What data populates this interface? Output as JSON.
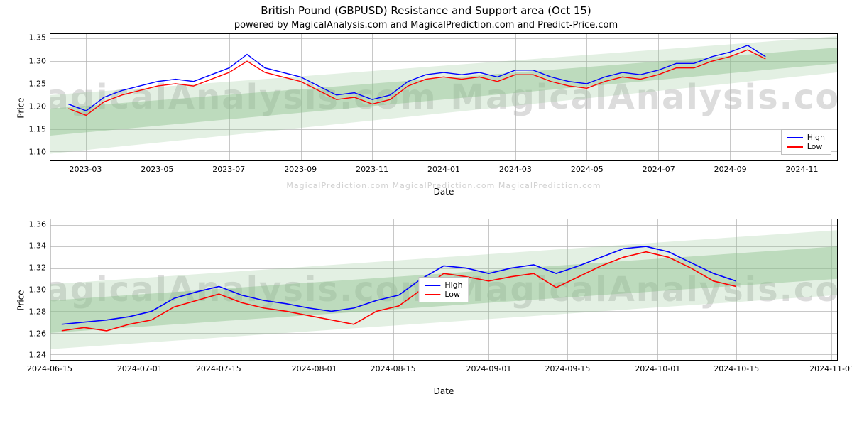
{
  "title": "British Pound (GBPUSD) Resistance and Support area (Oct 15)",
  "subtitle": "powered by MagicalAnalysis.com and MagicalPrediction.com and Predict-Price.com",
  "top_chart": {
    "type": "line",
    "ylabel": "Price",
    "xlabel": "Date",
    "ylim": [
      1.08,
      1.36
    ],
    "yticks": [
      1.1,
      1.15,
      1.2,
      1.25,
      1.3,
      1.35
    ],
    "xlim": [
      0,
      22
    ],
    "xticks": [
      {
        "pos": 1,
        "label": "2023-03"
      },
      {
        "pos": 3,
        "label": "2023-05"
      },
      {
        "pos": 5,
        "label": "2023-07"
      },
      {
        "pos": 7,
        "label": "2023-09"
      },
      {
        "pos": 9,
        "label": "2023-11"
      },
      {
        "pos": 11,
        "label": "2024-01"
      },
      {
        "pos": 13,
        "label": "2024-03"
      },
      {
        "pos": 15,
        "label": "2024-05"
      },
      {
        "pos": 17,
        "label": "2024-07"
      },
      {
        "pos": 19,
        "label": "2024-09"
      },
      {
        "pos": 21,
        "label": "2024-11"
      }
    ],
    "watermark_text": "MagicalAnalysis.com    MagicalAnalysis.com",
    "footer_watermark": "MagicalPrediction.com   MagicalPrediction.com   MagicalPrediction.com",
    "line_high_color": "#0000ff",
    "line_low_color": "#ff0000",
    "band_color": "#8fc28f",
    "band_opacity_outer": 0.25,
    "band_opacity_inner": 0.45,
    "grid_color": "#b0b0b0",
    "background_color": "#ffffff",
    "line_width": 1.4,
    "legend": {
      "items": [
        {
          "label": "High",
          "color": "#0000ff"
        },
        {
          "label": "Low",
          "color": "#ff0000"
        }
      ]
    },
    "bands": {
      "outer": {
        "start_low": 1.095,
        "start_high": 1.225,
        "end_low": 1.275,
        "end_high": 1.355
      },
      "inner": {
        "start_low": 1.135,
        "start_high": 1.195,
        "end_low": 1.295,
        "end_high": 1.33
      }
    },
    "series_x": [
      0.5,
      1,
      1.5,
      2,
      2.5,
      3,
      3.5,
      4,
      4.5,
      5,
      5.5,
      6,
      6.5,
      7,
      7.5,
      8,
      8.5,
      9,
      9.5,
      10,
      10.5,
      11,
      11.5,
      12,
      12.5,
      13,
      13.5,
      14,
      14.5,
      15,
      15.5,
      16,
      16.5,
      17,
      17.5,
      18,
      18.5,
      19,
      19.5,
      20
    ],
    "series_high": [
      1.205,
      1.19,
      1.22,
      1.235,
      1.245,
      1.255,
      1.26,
      1.255,
      1.27,
      1.285,
      1.315,
      1.285,
      1.275,
      1.265,
      1.245,
      1.225,
      1.23,
      1.215,
      1.225,
      1.255,
      1.27,
      1.275,
      1.27,
      1.275,
      1.265,
      1.28,
      1.28,
      1.265,
      1.255,
      1.25,
      1.265,
      1.275,
      1.27,
      1.28,
      1.295,
      1.295,
      1.31,
      1.32,
      1.335,
      1.31
    ],
    "series_low": [
      1.195,
      1.18,
      1.21,
      1.225,
      1.235,
      1.245,
      1.25,
      1.245,
      1.26,
      1.275,
      1.3,
      1.275,
      1.265,
      1.255,
      1.235,
      1.215,
      1.22,
      1.205,
      1.215,
      1.245,
      1.26,
      1.265,
      1.26,
      1.265,
      1.255,
      1.27,
      1.27,
      1.255,
      1.245,
      1.24,
      1.255,
      1.265,
      1.26,
      1.27,
      1.285,
      1.285,
      1.3,
      1.31,
      1.325,
      1.305
    ]
  },
  "bottom_chart": {
    "type": "line",
    "ylabel": "Price",
    "xlabel": "Date",
    "ylim": [
      1.235,
      1.365
    ],
    "yticks": [
      1.24,
      1.26,
      1.28,
      1.3,
      1.32,
      1.34,
      1.36
    ],
    "xlim": [
      0,
      140
    ],
    "xticks": [
      {
        "pos": 0,
        "label": "2024-06-15"
      },
      {
        "pos": 16,
        "label": "2024-07-01"
      },
      {
        "pos": 30,
        "label": "2024-07-15"
      },
      {
        "pos": 47,
        "label": "2024-08-01"
      },
      {
        "pos": 61,
        "label": "2024-08-15"
      },
      {
        "pos": 78,
        "label": "2024-09-01"
      },
      {
        "pos": 92,
        "label": "2024-09-15"
      },
      {
        "pos": 108,
        "label": "2024-10-01"
      },
      {
        "pos": 122,
        "label": "2024-10-15"
      },
      {
        "pos": 139,
        "label": "2024-11-01"
      }
    ],
    "watermark_text": "MagicalAnalysis.com    MagicalAnalysis.com",
    "line_high_color": "#0000ff",
    "line_low_color": "#ff0000",
    "band_color": "#8fc28f",
    "band_opacity_outer": 0.25,
    "band_opacity_inner": 0.45,
    "grid_color": "#b0b0b0",
    "background_color": "#ffffff",
    "line_width": 1.6,
    "legend": {
      "items": [
        {
          "label": "High",
          "color": "#0000ff"
        },
        {
          "label": "Low",
          "color": "#ff0000"
        }
      ]
    },
    "bands": {
      "outer": {
        "start_low": 1.245,
        "start_high": 1.305,
        "end_low": 1.295,
        "end_high": 1.355
      },
      "inner": {
        "start_low": 1.26,
        "start_high": 1.29,
        "end_low": 1.31,
        "end_high": 1.34
      }
    },
    "series_x": [
      2,
      6,
      10,
      14,
      18,
      22,
      26,
      30,
      34,
      38,
      42,
      46,
      50,
      54,
      58,
      62,
      66,
      70,
      74,
      78,
      82,
      86,
      90,
      94,
      98,
      102,
      106,
      110,
      114,
      118,
      122
    ],
    "series_high": [
      1.268,
      1.27,
      1.272,
      1.275,
      1.28,
      1.292,
      1.298,
      1.303,
      1.295,
      1.29,
      1.287,
      1.283,
      1.28,
      1.283,
      1.29,
      1.295,
      1.31,
      1.322,
      1.32,
      1.315,
      1.32,
      1.323,
      1.315,
      1.322,
      1.33,
      1.338,
      1.34,
      1.335,
      1.325,
      1.315,
      1.308
    ],
    "series_low": [
      1.262,
      1.265,
      1.262,
      1.268,
      1.272,
      1.284,
      1.29,
      1.296,
      1.288,
      1.283,
      1.28,
      1.276,
      1.272,
      1.268,
      1.28,
      1.285,
      1.3,
      1.315,
      1.312,
      1.308,
      1.312,
      1.315,
      1.302,
      1.312,
      1.322,
      1.33,
      1.335,
      1.33,
      1.32,
      1.308,
      1.303
    ]
  }
}
